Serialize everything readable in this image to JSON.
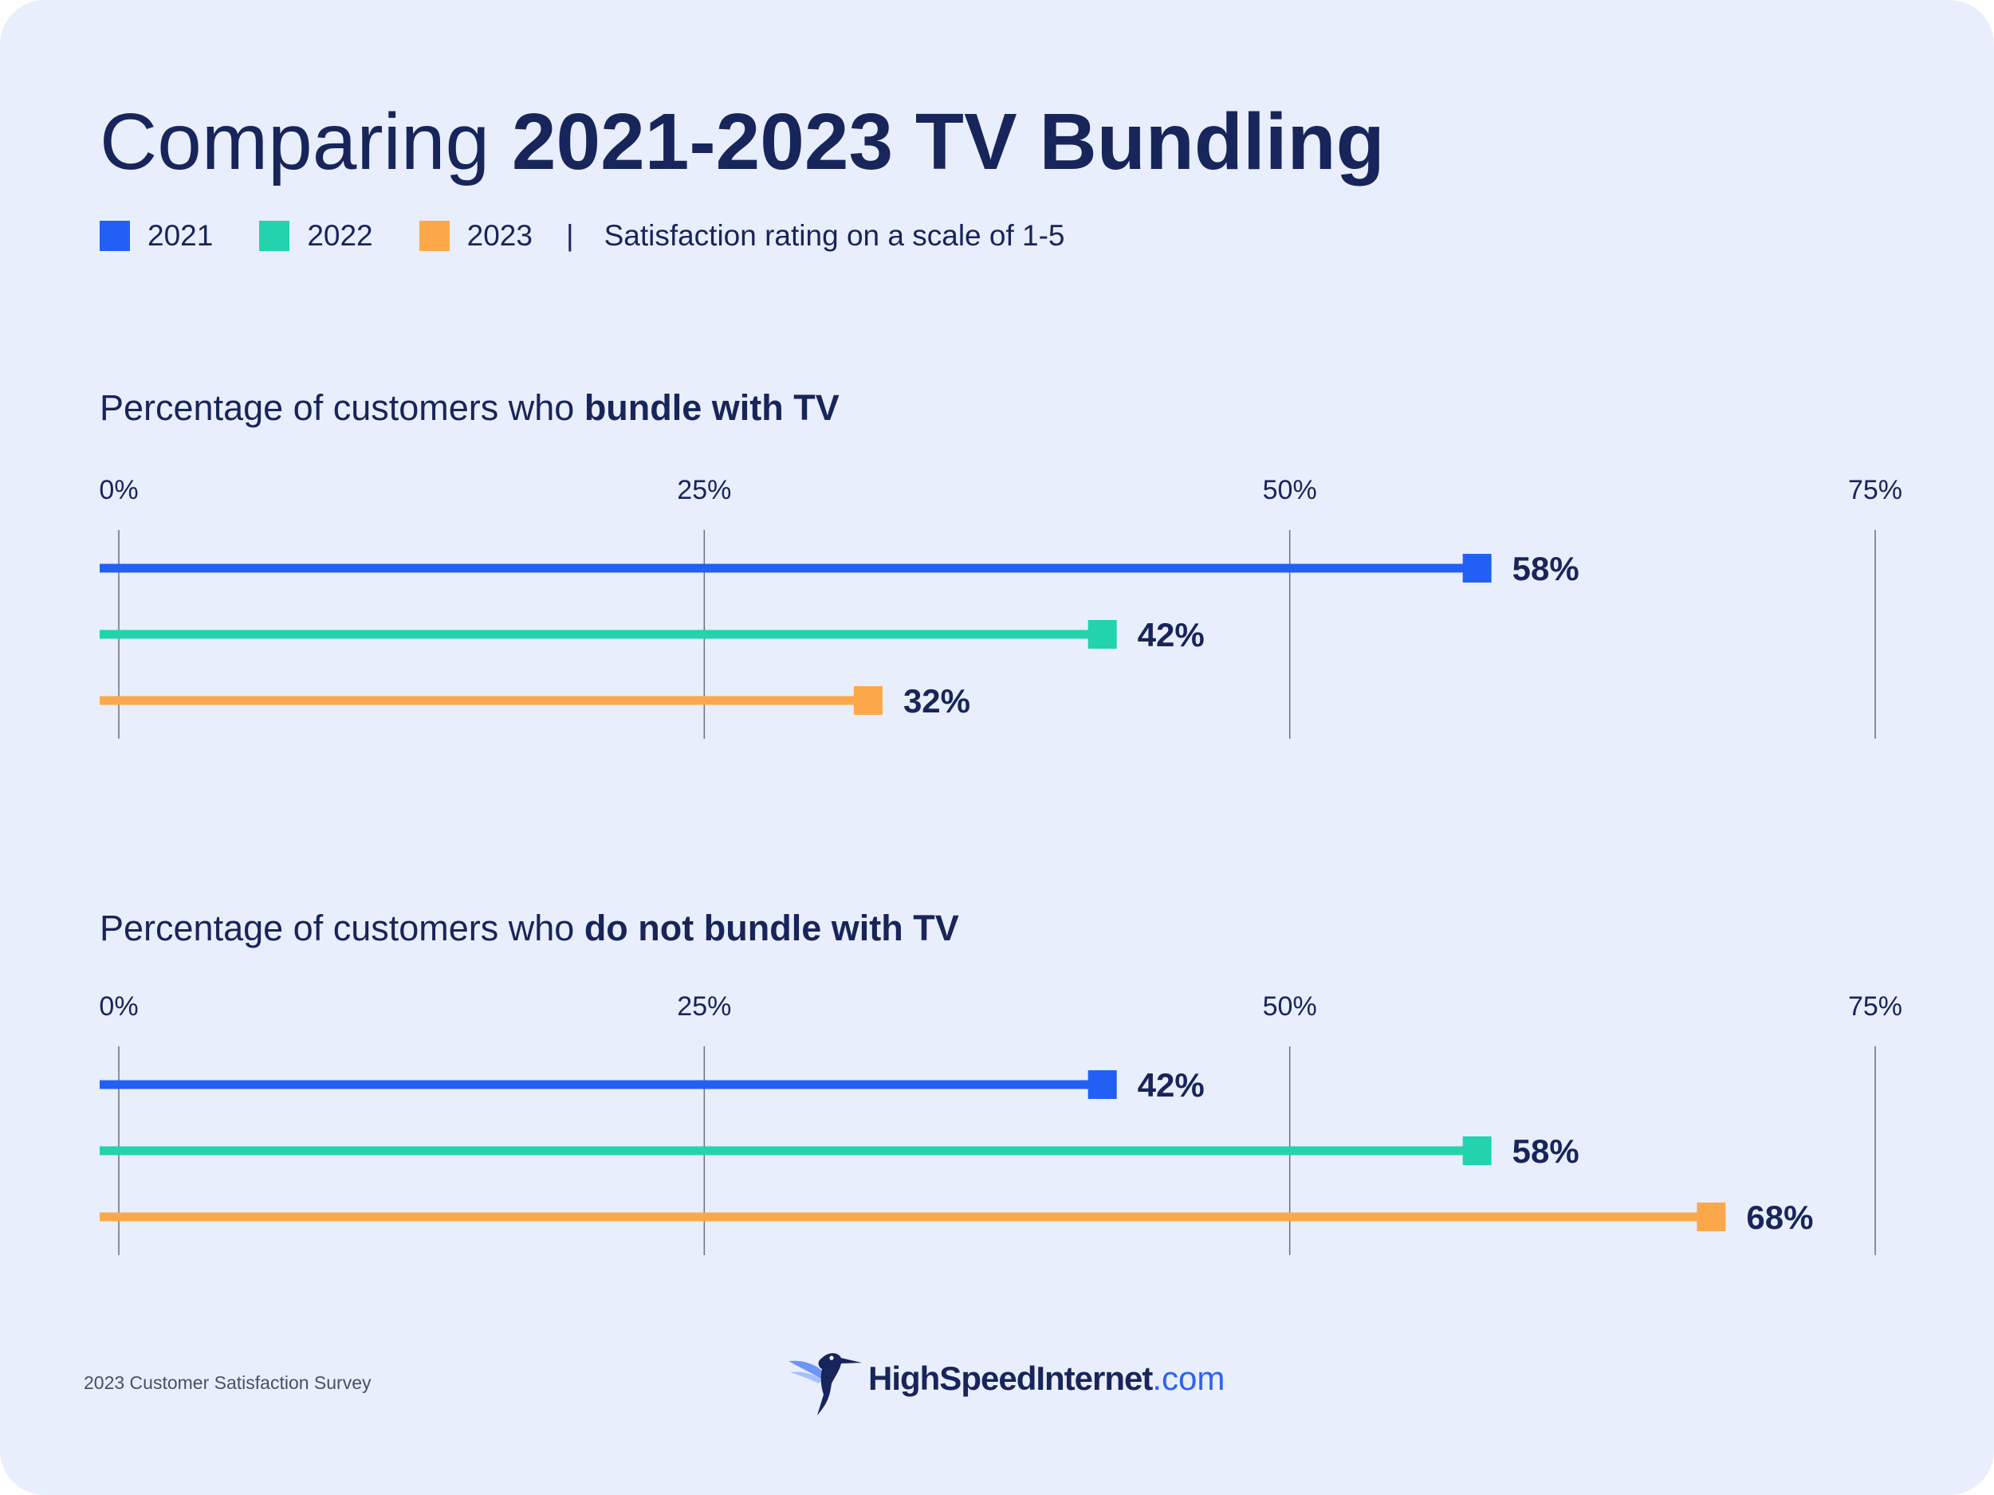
{
  "header": {
    "title_prefix": "Comparing ",
    "title_bold": "2021-2023 TV Bundling"
  },
  "legend": {
    "items": [
      {
        "label": "2021",
        "color": "#2260f5"
      },
      {
        "label": "2022",
        "color": "#22d3ad"
      },
      {
        "label": "2023",
        "color": "#fca84a"
      }
    ],
    "separator": "|",
    "note": "Satisfaction rating on a scale of 1-5"
  },
  "sections": [
    {
      "title_prefix": "Percentage of customers who ",
      "title_bold": "bundle with TV"
    },
    {
      "title_prefix": "Percentage of customers who ",
      "title_bold": "do not bundle with TV"
    }
  ],
  "chart_data": [
    {
      "type": "bar",
      "orientation": "horizontal",
      "title": "Percentage of customers who bundle with TV",
      "xlim": [
        0,
        75
      ],
      "ticks": [
        "0%",
        "25%",
        "50%",
        "75%"
      ],
      "series": [
        {
          "name": "2021",
          "value": 58,
          "label": "58%",
          "color": "#2260f5"
        },
        {
          "name": "2022",
          "value": 42,
          "label": "42%",
          "color": "#22d3ad"
        },
        {
          "name": "2023",
          "value": 32,
          "label": "32%",
          "color": "#fca84a"
        }
      ],
      "grid": true
    },
    {
      "type": "bar",
      "orientation": "horizontal",
      "title": "Percentage of customers who do not bundle with TV",
      "xlim": [
        0,
        75
      ],
      "ticks": [
        "0%",
        "25%",
        "50%",
        "75%"
      ],
      "series": [
        {
          "name": "2021",
          "value": 42,
          "label": "42%",
          "color": "#2260f5"
        },
        {
          "name": "2022",
          "value": 58,
          "label": "58%",
          "color": "#22d3ad"
        },
        {
          "name": "2023",
          "value": 68,
          "label": "68%",
          "color": "#fca84a"
        }
      ],
      "grid": true
    }
  ],
  "footer": {
    "note": "2023 Customer Satisfaction Survey",
    "logo_main": "HighSpeedInternet",
    "logo_suffix": ".com",
    "logo_icon": "hummingbird-icon"
  }
}
